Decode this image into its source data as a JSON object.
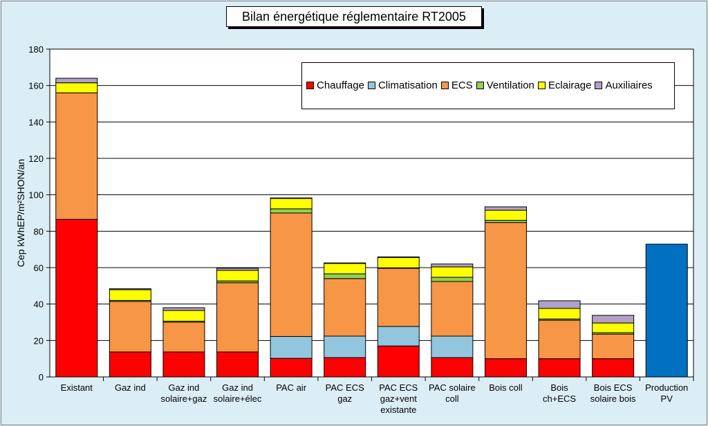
{
  "chart_data": {
    "type": "bar",
    "stacked": true,
    "title": "Bilan énergétique réglementaire RT2005",
    "xlabel": "",
    "ylabel": "Cep kWhEP/m²SHON/an",
    "ylim": [
      0,
      180
    ],
    "yticks": [
      "0",
      "20",
      "40",
      "60",
      "80",
      "100",
      "120",
      "140",
      "160",
      "180"
    ],
    "grid": true,
    "legend_position": "top-right",
    "categories": [
      [
        "Existant"
      ],
      [
        "Gaz ind"
      ],
      [
        "Gaz ind",
        "solaire+gaz"
      ],
      [
        "Gaz ind",
        "solaire+élec"
      ],
      [
        "PAC air"
      ],
      [
        "PAC ECS",
        "gaz"
      ],
      [
        "PAC ECS",
        "gaz+vent",
        "existante"
      ],
      [
        "PAC solaire",
        "coll"
      ],
      [
        "Bois coll"
      ],
      [
        "Bois",
        "ch+ECS"
      ],
      [
        "Bois ECS",
        "solaire bois"
      ],
      [
        "Production",
        "PV"
      ]
    ],
    "series": [
      {
        "name": "Chauffage",
        "color": "#ff0000",
        "values": [
          86.5,
          13.7,
          13.7,
          13.7,
          10.2,
          10.6,
          17,
          10.6,
          10,
          10,
          10,
          0
        ]
      },
      {
        "name": "Climatisation",
        "color": "#92c5de",
        "values": [
          0,
          0,
          0,
          0,
          12,
          11.8,
          10.7,
          11.8,
          0,
          0,
          0,
          0
        ]
      },
      {
        "name": "ECS",
        "color": "#f79646",
        "values": [
          69.5,
          27.7,
          16.3,
          38,
          67.8,
          31.6,
          31.9,
          30,
          74.8,
          21.1,
          13.5,
          0
        ]
      },
      {
        "name": "Ventilation",
        "color": "#92d050",
        "values": [
          0,
          0.6,
          0.6,
          1,
          2.3,
          2.6,
          0.3,
          2.3,
          1.2,
          0.7,
          0.8,
          0
        ]
      },
      {
        "name": "Eclairage",
        "color": "#ffff00",
        "values": [
          5.5,
          5.9,
          5.9,
          5.8,
          5.7,
          5.7,
          5.7,
          5.7,
          5.5,
          5.8,
          5.3,
          0
        ]
      },
      {
        "name": "Auxiliaires",
        "color": "#b1a0c7",
        "values": [
          2.5,
          0.5,
          1.5,
          1.2,
          0.3,
          0.3,
          0.3,
          1.6,
          1.9,
          4.2,
          4.2,
          0
        ]
      }
    ],
    "extra_series": {
      "category_index": 11,
      "value": 72.9,
      "color": "#0070c0"
    }
  }
}
